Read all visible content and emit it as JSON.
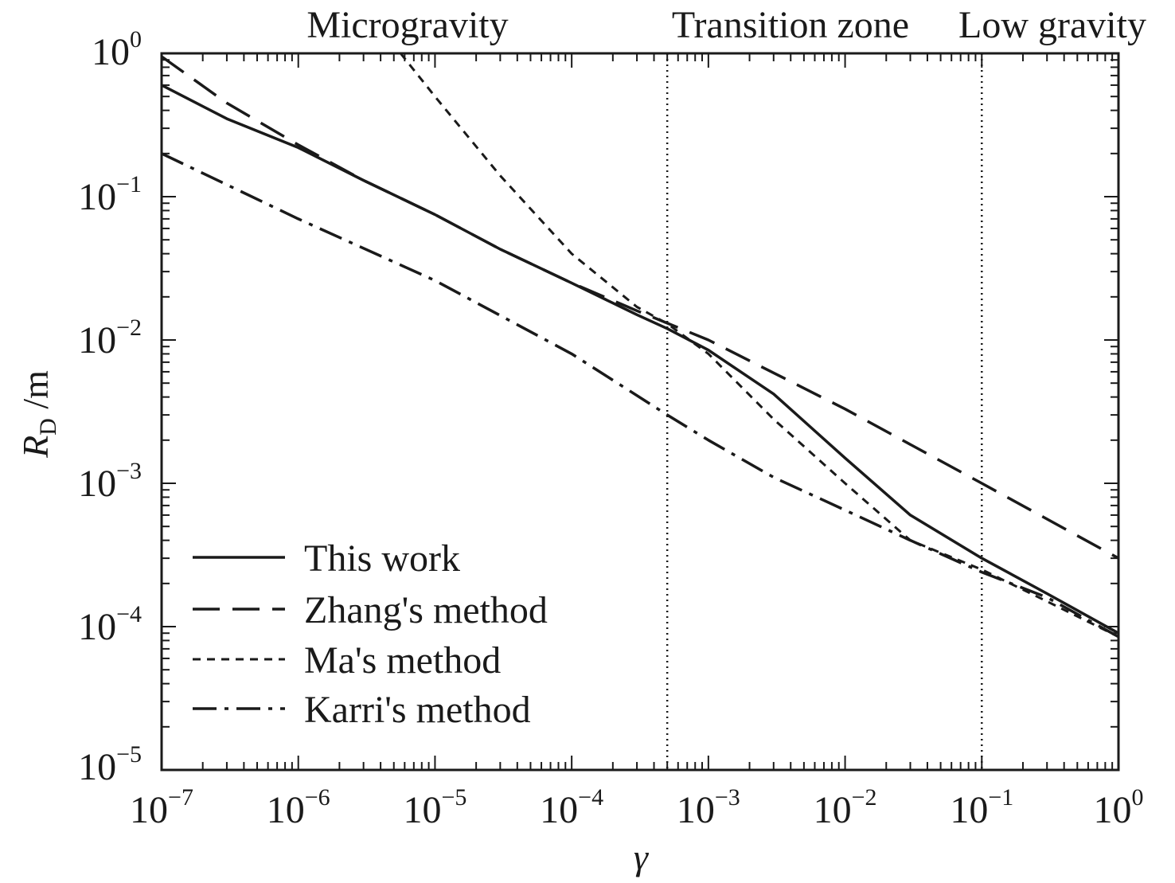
{
  "chart_data": {
    "type": "line",
    "title": "",
    "xlabel": "γ",
    "ylabel_symbol": "R",
    "ylabel_subscript": "D",
    "ylabel_unit": " /m",
    "xscale": "log",
    "yscale": "log",
    "xlim": [
      1e-07,
      1
    ],
    "ylim": [
      1e-05,
      1
    ],
    "grid": false,
    "legend_position": "lower-left",
    "x_ticks": [
      {
        "value": 1e-07,
        "base": "10",
        "exp": "−7"
      },
      {
        "value": 1e-06,
        "base": "10",
        "exp": "−6"
      },
      {
        "value": 1e-05,
        "base": "10",
        "exp": "−5"
      },
      {
        "value": 0.0001,
        "base": "10",
        "exp": "−4"
      },
      {
        "value": 0.001,
        "base": "10",
        "exp": "−3"
      },
      {
        "value": 0.01,
        "base": "10",
        "exp": "−2"
      },
      {
        "value": 0.1,
        "base": "10",
        "exp": "−1"
      },
      {
        "value": 1,
        "base": "10",
        "exp": "0"
      }
    ],
    "y_ticks": [
      {
        "value": 1e-05,
        "base": "10",
        "exp": "−5"
      },
      {
        "value": 0.0001,
        "base": "10",
        "exp": "−4"
      },
      {
        "value": 0.001,
        "base": "10",
        "exp": "−3"
      },
      {
        "value": 0.01,
        "base": "10",
        "exp": "−2"
      },
      {
        "value": 0.1,
        "base": "10",
        "exp": "−1"
      },
      {
        "value": 1,
        "base": "10",
        "exp": "0"
      }
    ],
    "regions": [
      {
        "label": "Microgravity",
        "boundary": 0.0005
      },
      {
        "label": "Transition zone",
        "boundary": 0.1
      },
      {
        "label": "Low gravity"
      }
    ],
    "series": [
      {
        "name": "This work",
        "style": "solid",
        "x": [
          1e-07,
          3e-07,
          1e-06,
          3e-06,
          1e-05,
          3e-05,
          0.0001,
          0.0003,
          0.0005,
          0.001,
          0.003,
          0.01,
          0.03,
          0.1,
          0.3,
          1
        ],
        "y": [
          0.6,
          0.35,
          0.22,
          0.13,
          0.075,
          0.043,
          0.025,
          0.015,
          0.012,
          0.0085,
          0.0042,
          0.0015,
          0.0006,
          0.0003,
          0.00017,
          9e-05
        ]
      },
      {
        "name": "Zhang's method",
        "style": "long-dash",
        "x": [
          1e-07,
          3e-07,
          1e-06,
          3e-06,
          1e-05,
          3e-05,
          0.0001,
          0.0003,
          0.001,
          0.01,
          0.1,
          1
        ],
        "y": [
          0.95,
          0.45,
          0.23,
          0.13,
          0.075,
          0.043,
          0.025,
          0.016,
          0.01,
          0.0033,
          0.001,
          0.0003
        ]
      },
      {
        "name": "Ma's method",
        "style": "short-dash",
        "x": [
          5.6e-06,
          1e-05,
          3e-05,
          0.0001,
          0.0003,
          0.0005,
          0.001,
          0.003,
          0.01,
          0.03,
          0.1,
          0.3,
          1
        ],
        "y": [
          1,
          0.5,
          0.14,
          0.04,
          0.017,
          0.013,
          0.008,
          0.0028,
          0.001,
          0.0004,
          0.00025,
          0.00015,
          8.5e-05
        ]
      },
      {
        "name": "Karri's method",
        "style": "dash-dot",
        "x": [
          1e-07,
          1e-06,
          1e-05,
          0.0001,
          0.0005,
          0.001,
          0.003,
          0.01,
          0.03,
          0.1,
          0.3,
          1
        ],
        "y": [
          0.2,
          0.07,
          0.026,
          0.008,
          0.003,
          0.002,
          0.0011,
          0.00065,
          0.0004,
          0.00024,
          0.00016,
          8.5e-05
        ]
      }
    ]
  }
}
